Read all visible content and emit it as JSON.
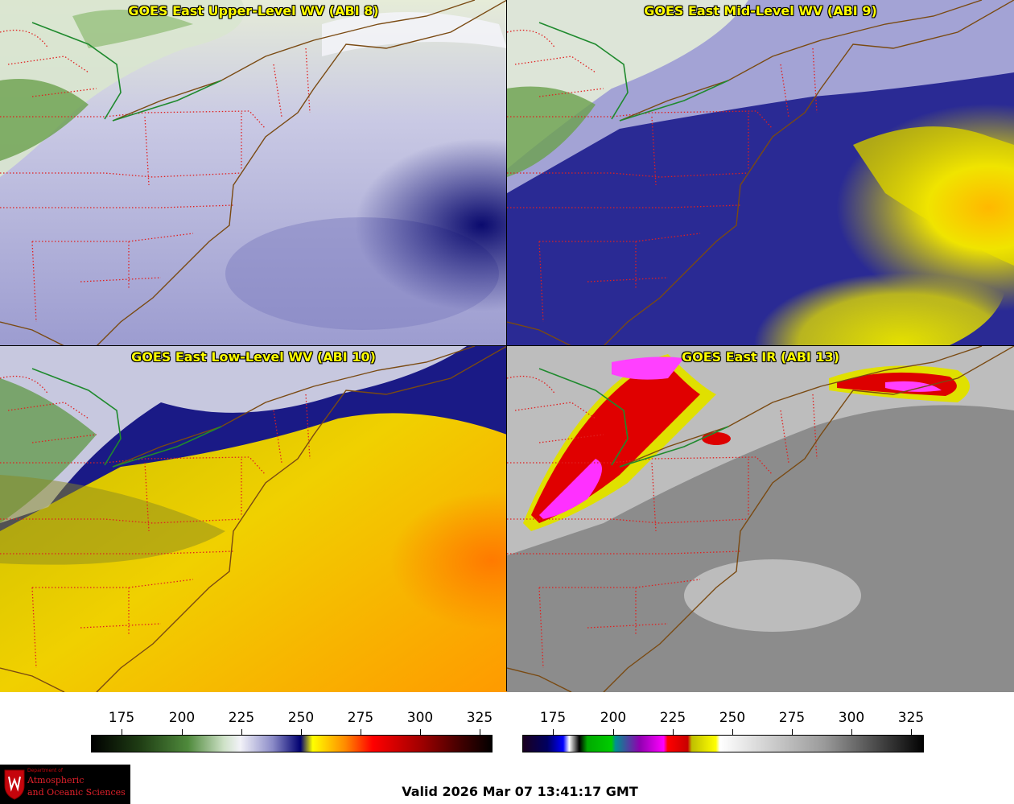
{
  "panels": {
    "upper": {
      "title": "GOES East Upper-Level WV (ABI 8)"
    },
    "mid": {
      "title": "GOES East Mid-Level WV (ABI 9)"
    },
    "low": {
      "title": "GOES East Low-Level WV (ABI 10)"
    },
    "ir": {
      "title": "GOES East IR (ABI 13)"
    }
  },
  "colorbars": {
    "wv": {
      "ticks": [
        "175",
        "200",
        "225",
        "250",
        "275",
        "300",
        "325"
      ]
    },
    "ir": {
      "ticks": [
        "175",
        "200",
        "225",
        "250",
        "275",
        "300",
        "325"
      ]
    }
  },
  "valid_time": "Valid 2026 Mar 07 13:41:17 GMT",
  "logo": {
    "line1": "Department of",
    "line2": "Atmospheric",
    "line3": "and Oceanic Sciences"
  },
  "colors": {
    "title": "#ffff00",
    "state_borders": "#e02020",
    "coastline": "#7a4a12",
    "intl_border": "#1f8a2e"
  }
}
